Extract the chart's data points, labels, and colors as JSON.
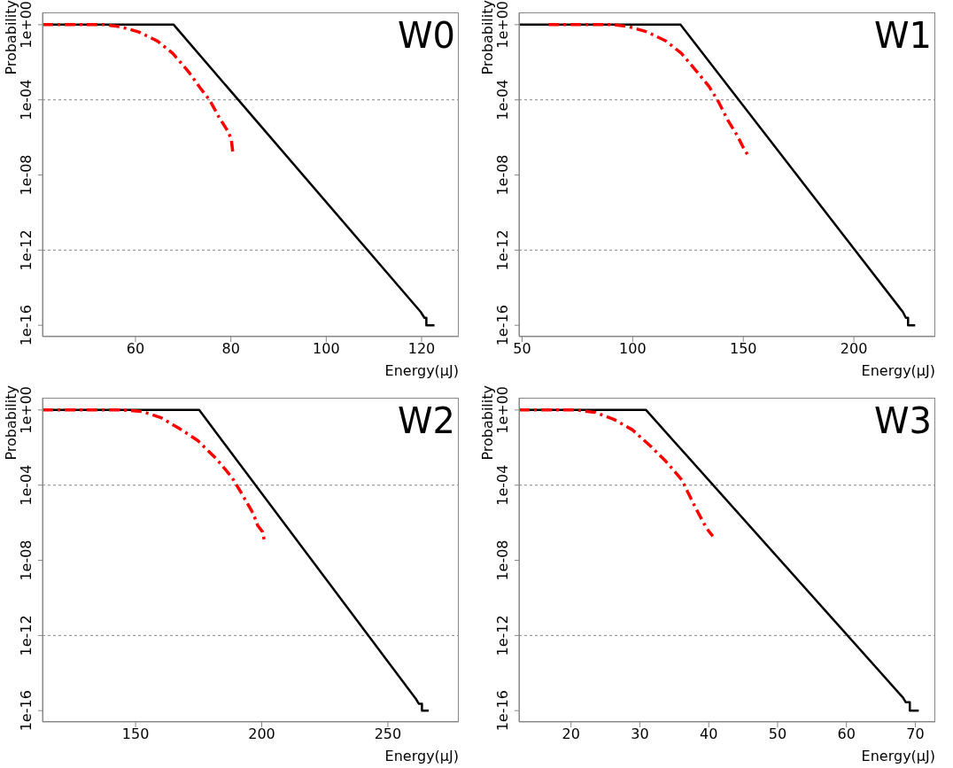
{
  "chart_data": [
    {
      "type": "line",
      "xlabel": "Energy(μJ)",
      "ylabel": "Probability",
      "log": "y",
      "grid": false,
      "annotations": [
        "W0"
      ],
      "xlim": [
        40.5,
        127.8
      ],
      "xticks": [
        60,
        80,
        100,
        120
      ],
      "ylim": [
        2.5e-17,
        4.5
      ],
      "yticks": [
        {
          "value": 1,
          "label": "1e+00"
        },
        {
          "value": 0.0001,
          "label": "1e-04"
        },
        {
          "value": 1e-08,
          "label": "1e-08"
        },
        {
          "value": 1e-12,
          "label": "1e-12"
        },
        {
          "value": 1e-16,
          "label": "1e-16"
        }
      ],
      "ref_lines": [
        {
          "axis": "y",
          "value": 0.0001,
          "label": null,
          "color": "#888888",
          "line_style": "dotted"
        },
        {
          "axis": "y",
          "value": 1e-12,
          "label": null,
          "color": "#888888",
          "line_style": "dotted"
        }
      ],
      "series": [
        {
          "color": "#000000",
          "line_style": "solid",
          "x": [
            40.5,
            68,
            119.8,
            120.6,
            121,
            121,
            122.7
          ],
          "values": [
            1,
            1,
            5.2e-16,
            2.5e-16,
            2.5e-16,
            1e-16,
            1e-16
          ]
        },
        {
          "color": "#ff0000",
          "line_style": "dashed",
          "x": [
            40.5,
            53.6,
            56.8,
            60.7,
            64.6,
            67.8,
            71.1,
            73.6,
            75.6,
            77.5,
            79.5,
            80.1,
            80.4,
            81.2
          ],
          "values": [
            1,
            1,
            0.78,
            0.41,
            0.135,
            0.03,
            0.0032,
            0.00042,
            9.3e-05,
            1.2e-05,
            1.9e-06,
            7.4e-07,
            1.7e-07,
            1.5e-07
          ]
        }
      ]
    },
    {
      "type": "line",
      "xlabel": "Energy(μJ)",
      "ylabel": "Probability",
      "log": "y",
      "grid": false,
      "annotations": [
        "W1"
      ],
      "xlim": [
        48.6,
        236.8
      ],
      "xticks": [
        50,
        100,
        150,
        200
      ],
      "ylim": [
        2.5e-17,
        4.5
      ],
      "yticks": [
        {
          "value": 1,
          "label": "1e+00"
        },
        {
          "value": 0.0001,
          "label": "1e-04"
        },
        {
          "value": 1e-08,
          "label": "1e-08"
        },
        {
          "value": 1e-12,
          "label": "1e-12"
        },
        {
          "value": 1e-16,
          "label": "1e-16"
        }
      ],
      "ref_lines": [
        {
          "axis": "y",
          "value": 0.0001,
          "label": null,
          "color": "#888888",
          "line_style": "dotted"
        },
        {
          "axis": "y",
          "value": 1e-12,
          "label": null,
          "color": "#888888",
          "line_style": "dotted"
        }
      ],
      "series": [
        {
          "color": "#000000",
          "line_style": "solid",
          "x": [
            48.6,
            121.6,
            222.1,
            223.5,
            224.5,
            224.5,
            227.7
          ],
          "values": [
            1,
            1,
            5.2e-16,
            2.5e-16,
            2.5e-16,
            1e-16,
            1e-16
          ]
        },
        {
          "color": "#ff0000",
          "line_style": "dashed",
          "x": [
            61.9,
            91.3,
            98.3,
            106.6,
            115,
            122,
            129,
            134.6,
            138.8,
            143,
            147.2,
            150,
            152.5
          ],
          "values": [
            1,
            1,
            0.78,
            0.41,
            0.135,
            0.03,
            0.0032,
            0.0005,
            7.8e-05,
            8.3e-06,
            1.3e-06,
            2.9e-07,
            9.5e-08
          ]
        }
      ]
    },
    {
      "type": "line",
      "xlabel": "Energy(μJ)",
      "ylabel": "Probability",
      "log": "y",
      "grid": false,
      "annotations": [
        "W2"
      ],
      "xlim": [
        113.1,
        278.1
      ],
      "xticks": [
        150,
        200,
        250
      ],
      "ylim": [
        2.5e-17,
        4.5
      ],
      "yticks": [
        {
          "value": 1,
          "label": "1e+00"
        },
        {
          "value": 0.0001,
          "label": "1e-04"
        },
        {
          "value": 1e-08,
          "label": "1e-08"
        },
        {
          "value": 1e-12,
          "label": "1e-12"
        },
        {
          "value": 1e-16,
          "label": "1e-16"
        }
      ],
      "ref_lines": [
        {
          "axis": "y",
          "value": 0.0001,
          "label": null,
          "color": "#888888",
          "line_style": "dotted"
        },
        {
          "axis": "y",
          "value": 1e-12,
          "label": null,
          "color": "#888888",
          "line_style": "dotted"
        }
      ],
      "series": [
        {
          "color": "#000000",
          "line_style": "solid",
          "x": [
            113.1,
            175.2,
            261.1,
            262.3,
            263.5,
            263.5,
            266.2
          ],
          "values": [
            1,
            1,
            4.2e-16,
            2.3e-16,
            2.3e-16,
            1e-16,
            1e-16
          ]
        },
        {
          "color": "#ff0000",
          "line_style": "dashed",
          "x": [
            113.1,
            145.2,
            152.6,
            159.9,
            167.2,
            174.6,
            181.9,
            188,
            191.7,
            196.6,
            198.4,
            200.3,
            201.2
          ],
          "values": [
            1,
            1,
            0.83,
            0.4,
            0.107,
            0.024,
            0.0026,
            0.00028,
            4.3e-05,
            3.1e-06,
            7.1e-07,
            3.3e-07,
            9.1e-08
          ]
        }
      ]
    },
    {
      "type": "line",
      "xlabel": "Energy(μJ)",
      "ylabel": "Probability",
      "log": "y",
      "grid": false,
      "annotations": [
        "W3"
      ],
      "xlim": [
        12.45,
        72.9
      ],
      "xticks": [
        20,
        30,
        40,
        50,
        60,
        70
      ],
      "ylim": [
        2.5e-17,
        4.5
      ],
      "yticks": [
        {
          "value": 1,
          "label": "1e+00"
        },
        {
          "value": 0.0001,
          "label": "1e-04"
        },
        {
          "value": 1e-08,
          "label": "1e-08"
        },
        {
          "value": 1e-12,
          "label": "1e-12"
        },
        {
          "value": 1e-16,
          "label": "1e-16"
        }
      ],
      "ref_lines": [
        {
          "axis": "y",
          "value": 0.0001,
          "label": null,
          "color": "#888888",
          "line_style": "dotted"
        },
        {
          "axis": "y",
          "value": 1e-12,
          "label": null,
          "color": "#888888",
          "line_style": "dotted"
        }
      ],
      "series": [
        {
          "color": "#000000",
          "line_style": "solid",
          "x": [
            12.45,
            30.9,
            68.2,
            68.6,
            69.2,
            69.2,
            70.5
          ],
          "values": [
            1,
            1,
            5e-16,
            2.8e-16,
            2.8e-16,
            1e-16,
            1e-16
          ]
        },
        {
          "color": "#ff0000",
          "line_style": "dashed",
          "x": [
            12.45,
            20.8,
            23.5,
            26.2,
            28.9,
            31.6,
            33.8,
            36.1,
            37.4,
            38.5,
            39.7,
            40.6
          ],
          "values": [
            1,
            1,
            0.74,
            0.32,
            0.089,
            0.0115,
            0.0018,
            0.00019,
            2e-05,
            3.2e-06,
            5e-07,
            1.9e-07
          ]
        }
      ]
    }
  ]
}
